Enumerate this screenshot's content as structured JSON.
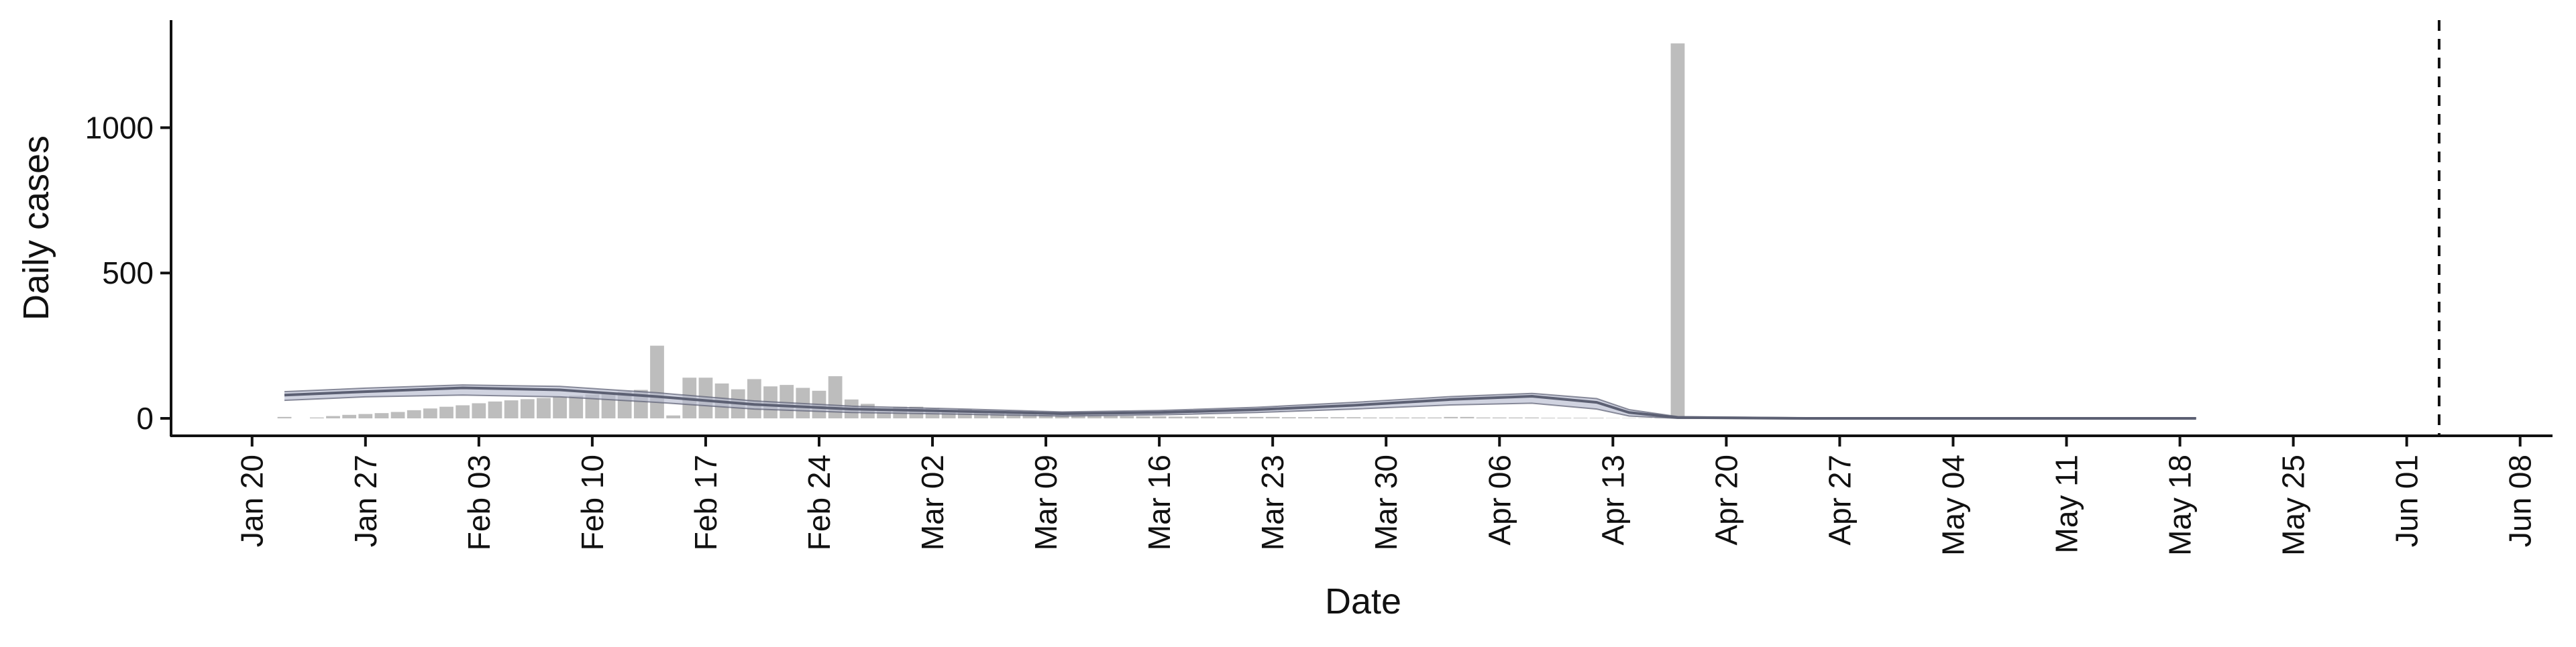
{
  "chart_data": {
    "type": "bar",
    "title": "",
    "xlabel": "Date",
    "ylabel": "Daily cases",
    "x_axis_type": "date",
    "y_ticks": [
      0,
      500,
      1000
    ],
    "y_tick_labels": [
      "0",
      "500",
      "1000"
    ],
    "x_tick_labels": [
      "Jan 20",
      "Jan 27",
      "Feb 03",
      "Feb 10",
      "Feb 17",
      "Feb 24",
      "Mar 02",
      "Mar 09",
      "Mar 16",
      "Mar 23",
      "Mar 30",
      "Apr 06",
      "Apr 13",
      "Apr 20",
      "Apr 27",
      "May 04",
      "May 11",
      "May 18",
      "May 25",
      "Jun 01",
      "Jun 08"
    ],
    "x_tick_dates": [
      "2020-01-20",
      "2020-01-27",
      "2020-02-03",
      "2020-02-10",
      "2020-02-17",
      "2020-02-24",
      "2020-03-02",
      "2020-03-09",
      "2020-03-16",
      "2020-03-23",
      "2020-03-30",
      "2020-04-06",
      "2020-04-13",
      "2020-04-20",
      "2020-04-27",
      "2020-05-04",
      "2020-05-11",
      "2020-05-18",
      "2020-05-25",
      "2020-06-01",
      "2020-06-08"
    ],
    "xlim": [
      "2020-01-15",
      "2020-06-10"
    ],
    "ylim": [
      -60,
      1370
    ],
    "grid": false,
    "bar_color": "#bdbdbd",
    "line_color": "#5c6073",
    "band_color": "#b7bccf",
    "vline_color": "#111111",
    "vline_date": "2020-06-03",
    "bars_start_date": "2020-01-22",
    "bars": [
      5,
      0,
      3,
      8,
      12,
      15,
      18,
      22,
      28,
      34,
      40,
      45,
      52,
      58,
      62,
      66,
      70,
      74,
      78,
      82,
      86,
      92,
      98,
      250,
      10,
      140,
      140,
      120,
      100,
      135,
      110,
      115,
      105,
      95,
      145,
      65,
      50,
      30,
      40,
      40,
      35,
      28,
      32,
      26,
      24,
      22,
      20,
      18,
      15,
      12,
      10,
      9,
      8,
      7,
      7,
      6,
      6,
      6,
      5,
      5,
      5,
      5,
      4,
      4,
      4,
      4,
      4,
      3,
      3,
      3,
      3,
      3,
      5,
      5,
      3,
      3,
      3,
      3,
      2,
      2,
      2,
      2,
      1,
      1,
      1,
      1,
      1290,
      0,
      0,
      0,
      0,
      0,
      0,
      0,
      0,
      0,
      0,
      0,
      0,
      0,
      0,
      0,
      0,
      0,
      0,
      0,
      0,
      0,
      0,
      0,
      0,
      0,
      0,
      0,
      0,
      0,
      0,
      0,
      0
    ],
    "series": [
      {
        "points": [
          [
            "2020-01-22",
            80
          ],
          [
            "2020-01-27",
            92
          ],
          [
            "2020-02-02",
            105
          ],
          [
            "2020-02-08",
            98
          ],
          [
            "2020-02-14",
            75
          ],
          [
            "2020-02-20",
            48
          ],
          [
            "2020-02-26",
            32
          ],
          [
            "2020-03-04",
            24
          ],
          [
            "2020-03-10",
            16
          ],
          [
            "2020-03-16",
            20
          ],
          [
            "2020-03-22",
            30
          ],
          [
            "2020-03-28",
            45
          ],
          [
            "2020-04-03",
            65
          ],
          [
            "2020-04-08",
            76
          ],
          [
            "2020-04-12",
            55
          ],
          [
            "2020-04-14",
            20
          ],
          [
            "2020-04-17",
            3
          ],
          [
            "2020-04-25",
            0
          ],
          [
            "2020-05-19",
            0
          ]
        ],
        "lower": [
          [
            "2020-01-22",
            62
          ],
          [
            "2020-01-27",
            74
          ],
          [
            "2020-02-02",
            80
          ],
          [
            "2020-02-08",
            74
          ],
          [
            "2020-02-14",
            55
          ],
          [
            "2020-02-20",
            32
          ],
          [
            "2020-02-26",
            20
          ],
          [
            "2020-03-04",
            14
          ],
          [
            "2020-03-10",
            8
          ],
          [
            "2020-03-16",
            12
          ],
          [
            "2020-03-22",
            20
          ],
          [
            "2020-03-28",
            32
          ],
          [
            "2020-04-03",
            46
          ],
          [
            "2020-04-08",
            52
          ],
          [
            "2020-04-12",
            32
          ],
          [
            "2020-04-14",
            8
          ],
          [
            "2020-04-17",
            0
          ],
          [
            "2020-04-25",
            0
          ],
          [
            "2020-05-19",
            0
          ]
        ],
        "upper": [
          [
            "2020-01-22",
            92
          ],
          [
            "2020-01-27",
            104
          ],
          [
            "2020-02-02",
            115
          ],
          [
            "2020-02-08",
            110
          ],
          [
            "2020-02-14",
            88
          ],
          [
            "2020-02-20",
            60
          ],
          [
            "2020-02-26",
            42
          ],
          [
            "2020-03-04",
            32
          ],
          [
            "2020-03-10",
            22
          ],
          [
            "2020-03-16",
            27
          ],
          [
            "2020-03-22",
            38
          ],
          [
            "2020-03-28",
            55
          ],
          [
            "2020-04-03",
            75
          ],
          [
            "2020-04-08",
            86
          ],
          [
            "2020-04-12",
            68
          ],
          [
            "2020-04-14",
            30
          ],
          [
            "2020-04-17",
            6
          ],
          [
            "2020-04-25",
            2
          ],
          [
            "2020-05-19",
            2
          ]
        ]
      }
    ]
  }
}
